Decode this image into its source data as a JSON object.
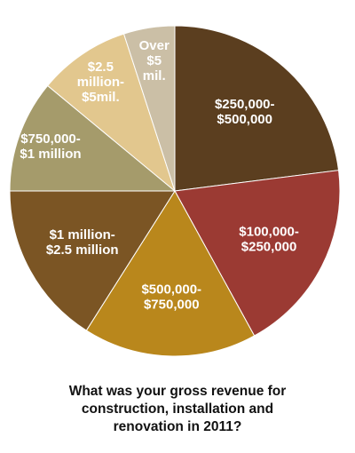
{
  "chart_data": {
    "type": "pie",
    "title": "What was your gross revenue for\nconstruction, installation and\nrenovation in 2011?",
    "categories": [
      "$250,000-\n$500,000",
      "$100,000-\n$250,000",
      "$500,000-\n$750,000",
      "$1 million-\n$2.5 million",
      "$750,000-\n$1 million",
      "$2.5\nmillion-\n$5mil.",
      "Over\n$5\nmil."
    ],
    "values": [
      23,
      19,
      17,
      16,
      11,
      9,
      5
    ],
    "colors": [
      "#5b3e1f",
      "#9b3a33",
      "#b9871c",
      "#7b5524",
      "#a59b6b",
      "#e2c78e",
      "#cbbfa6"
    ]
  }
}
